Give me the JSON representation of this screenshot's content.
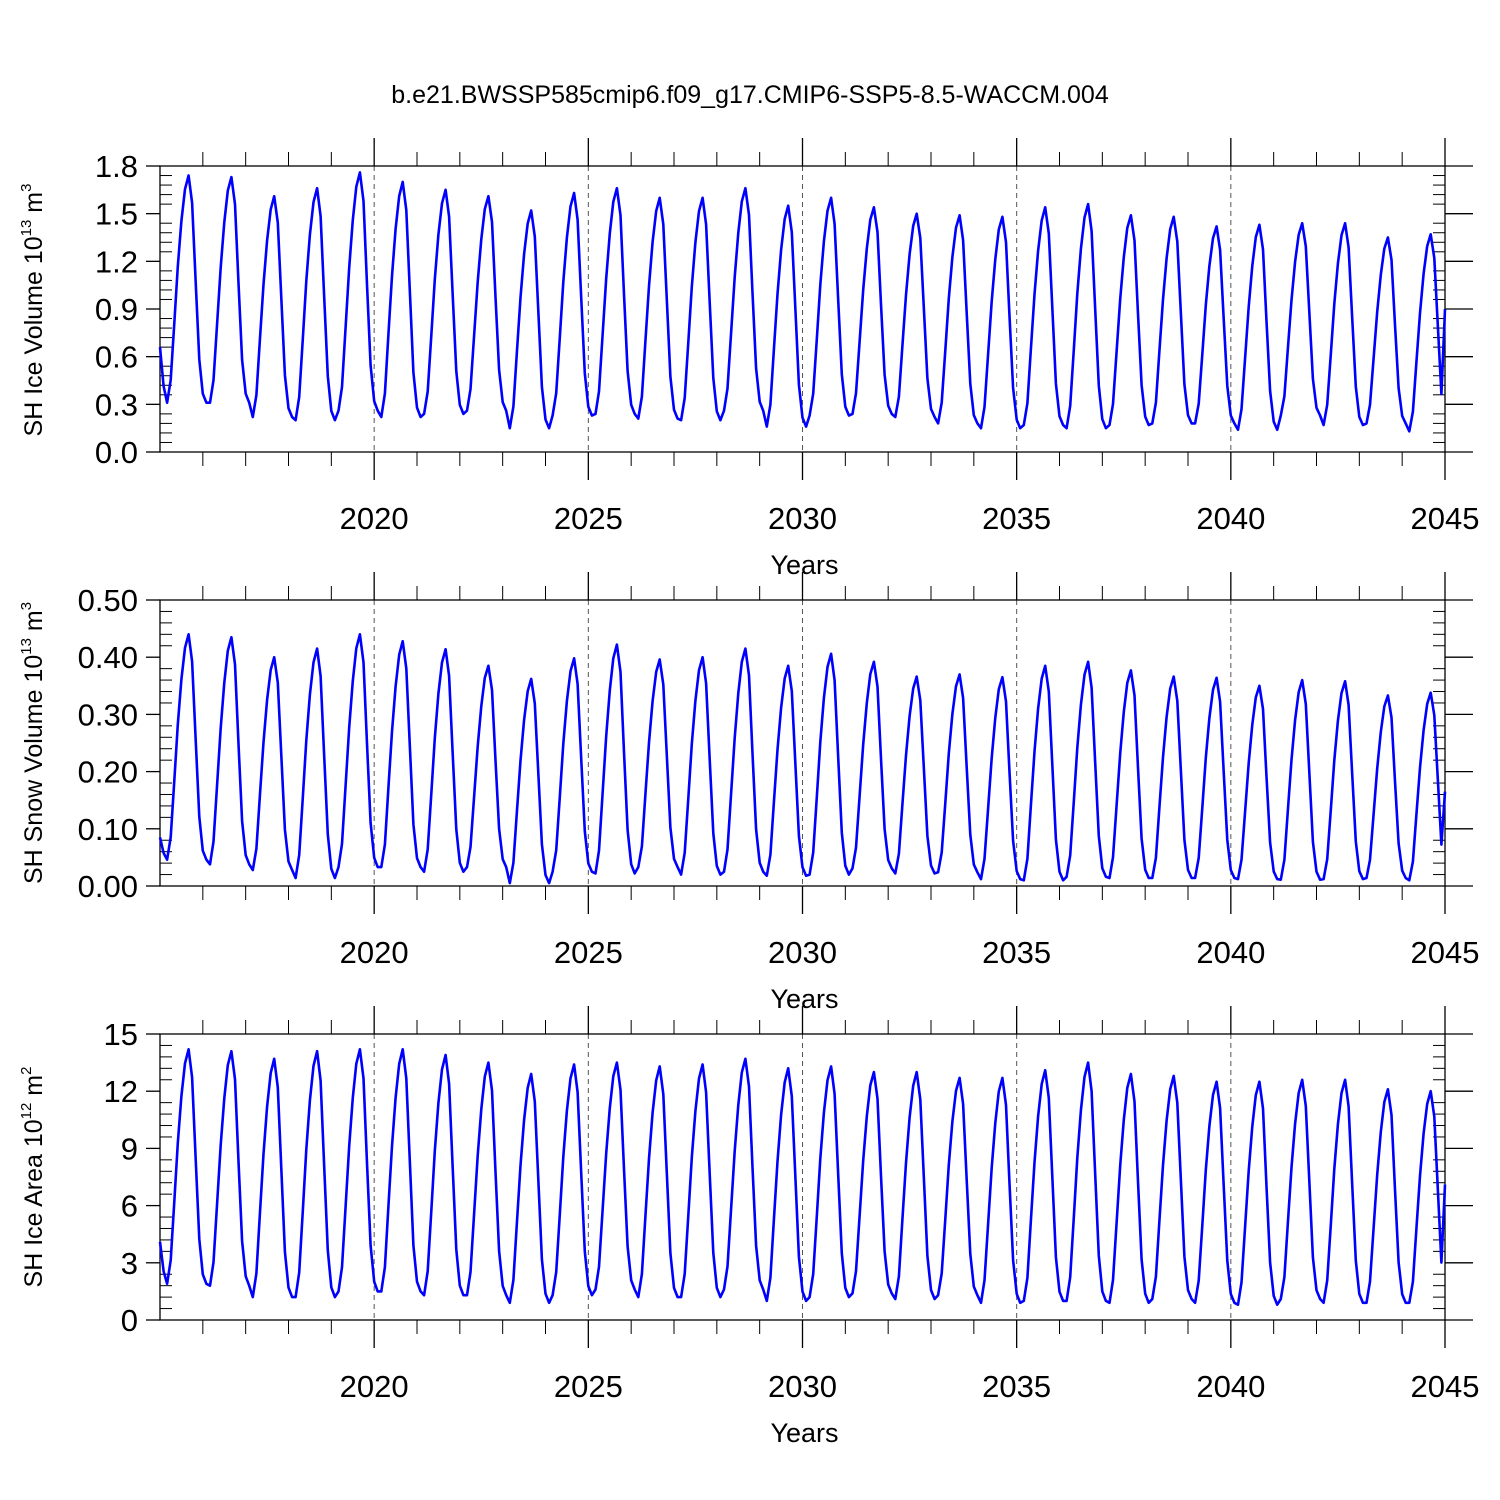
{
  "title": "b.e21.BWSSP585cmip6.f09_g17.CMIP6-SSP5-8.5-WACCM.004",
  "chart_data": [
    {
      "type": "line",
      "name": "ice-volume",
      "ylabel": {
        "main": "SH Ice Volume 10",
        "exp": "13",
        "unit": " m",
        "unit_exp": "3"
      },
      "xlabel": "Years",
      "xlim": [
        2015,
        2045
      ],
      "ylim": [
        0,
        1.8
      ],
      "yticks": [
        "0.0",
        "0.3",
        "0.6",
        "0.9",
        "1.2",
        "1.5",
        "1.8"
      ],
      "ytick_values": [
        0,
        0.3,
        0.6,
        0.9,
        1.2,
        1.5,
        1.8
      ],
      "xticks": [
        "2020",
        "2025",
        "2030",
        "2035",
        "2040",
        "2045"
      ],
      "xtick_values": [
        2020,
        2025,
        2030,
        2035,
        2040,
        2045
      ],
      "series_color": "#0000ff",
      "start": 0.66,
      "end": 0.9,
      "annual_max": [
        1.74,
        1.73,
        1.61,
        1.66,
        1.76,
        1.7,
        1.65,
        1.61,
        1.52,
        1.63,
        1.66,
        1.6,
        1.6,
        1.66,
        1.55,
        1.6,
        1.54,
        1.5,
        1.49,
        1.48,
        1.54,
        1.56,
        1.49,
        1.48,
        1.42,
        1.43,
        1.44,
        1.44,
        1.35,
        1.37
      ],
      "annual_min": [
        0.31,
        0.31,
        0.22,
        0.2,
        0.26,
        0.22,
        0.24,
        0.26,
        0.15,
        0.23,
        0.24,
        0.21,
        0.2,
        0.26,
        0.16,
        0.23,
        0.24,
        0.22,
        0.18,
        0.15,
        0.17,
        0.15,
        0.17,
        0.18,
        0.18,
        0.14,
        0.23,
        0.17,
        0.18,
        0.13
      ]
    },
    {
      "type": "line",
      "name": "snow-volume",
      "ylabel": {
        "main": "SH Snow Volume 10",
        "exp": "13",
        "unit": " m",
        "unit_exp": "3"
      },
      "xlabel": "Years",
      "xlim": [
        2015,
        2045
      ],
      "ylim": [
        0,
        0.5
      ],
      "yticks": [
        "0.00",
        "0.10",
        "0.20",
        "0.30",
        "0.40",
        "0.50"
      ],
      "ytick_values": [
        0,
        0.1,
        0.2,
        0.3,
        0.4,
        0.5
      ],
      "xticks": [
        "2020",
        "2025",
        "2030",
        "2035",
        "2040",
        "2045"
      ],
      "xtick_values": [
        2020,
        2025,
        2030,
        2035,
        2040,
        2045
      ],
      "series_color": "#0000ff",
      "start": 0.085,
      "end": 0.165,
      "annual_max": [
        0.44,
        0.435,
        0.4,
        0.415,
        0.44,
        0.428,
        0.414,
        0.385,
        0.362,
        0.398,
        0.422,
        0.396,
        0.4,
        0.415,
        0.385,
        0.406,
        0.392,
        0.366,
        0.37,
        0.365,
        0.385,
        0.392,
        0.377,
        0.366,
        0.364,
        0.35,
        0.36,
        0.358,
        0.333,
        0.338
      ],
      "annual_min": [
        0.046,
        0.038,
        0.028,
        0.014,
        0.033,
        0.033,
        0.025,
        0.033,
        0.005,
        0.025,
        0.022,
        0.033,
        0.02,
        0.025,
        0.018,
        0.02,
        0.031,
        0.022,
        0.024,
        0.012,
        0.01,
        0.016,
        0.014,
        0.014,
        0.014,
        0.012,
        0.011,
        0.012,
        0.014,
        0.01
      ]
    },
    {
      "type": "line",
      "name": "ice-area",
      "ylabel": {
        "main": "SH Ice Area 10",
        "exp": "12",
        "unit": " m",
        "unit_exp": "2"
      },
      "xlabel": "Years",
      "xlim": [
        2015,
        2045
      ],
      "ylim": [
        0,
        15
      ],
      "yticks": [
        "0",
        "3",
        "6",
        "9",
        "12",
        "15"
      ],
      "ytick_values": [
        0,
        3,
        6,
        9,
        12,
        15
      ],
      "xticks": [
        "2020",
        "2025",
        "2030",
        "2035",
        "2040",
        "2045"
      ],
      "xtick_values": [
        2020,
        2025,
        2030,
        2035,
        2040,
        2045
      ],
      "series_color": "#0000ff",
      "start": 4.1,
      "end": 7.1,
      "annual_max": [
        14.2,
        14.1,
        13.7,
        14.1,
        14.2,
        14.2,
        13.9,
        13.5,
        12.9,
        13.4,
        13.5,
        13.3,
        13.4,
        13.7,
        13.2,
        13.3,
        13.0,
        13.0,
        12.7,
        12.7,
        13.1,
        13.5,
        12.9,
        12.8,
        12.5,
        12.5,
        12.6,
        12.6,
        12.1,
        12.0
      ],
      "annual_min": [
        1.9,
        1.8,
        1.2,
        1.2,
        1.5,
        1.5,
        1.3,
        1.3,
        0.9,
        1.3,
        1.6,
        1.2,
        1.2,
        1.6,
        1.0,
        1.2,
        1.4,
        1.1,
        1.3,
        0.9,
        1.0,
        1.0,
        0.9,
        1.1,
        0.9,
        0.8,
        1.1,
        0.9,
        0.9,
        0.9
      ]
    }
  ]
}
